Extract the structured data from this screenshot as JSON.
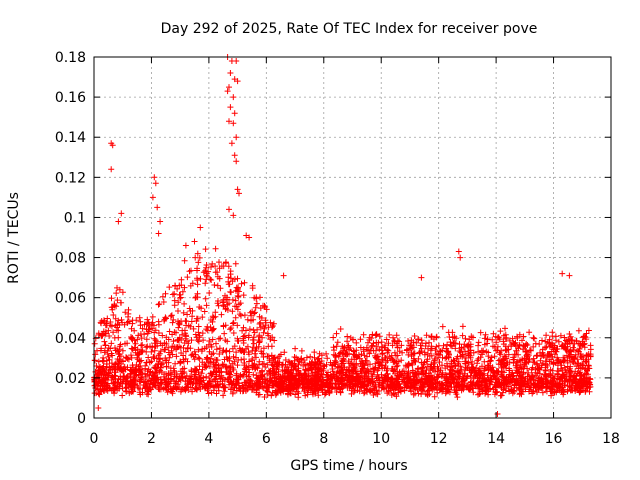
{
  "chart_data": {
    "type": "scatter",
    "title": "Day 292 of 2025, Rate Of TEC Index for receiver pove",
    "xlabel": "GPS time / hours",
    "ylabel": "ROTI / TECUs",
    "xlim": [
      0,
      18
    ],
    "ylim": [
      0,
      0.18
    ],
    "grid": true,
    "xticks": [
      0,
      2,
      4,
      6,
      8,
      10,
      12,
      14,
      16,
      18
    ],
    "xtick_labels": [
      "0",
      "2",
      "4",
      "6",
      "8",
      "10",
      "12",
      "14",
      "16",
      "18"
    ],
    "yticks": [
      0,
      0.02,
      0.04,
      0.06,
      0.08,
      0.1,
      0.12,
      0.14,
      0.16,
      0.18
    ],
    "ytick_labels": [
      "0",
      "0.02",
      "0.04",
      "0.06",
      "0.08",
      "0.1",
      "0.12",
      "0.14",
      "0.16",
      "0.18"
    ],
    "marker": "+",
    "color": "#ff0000",
    "x_range_of_data": [
      0,
      17.3
    ],
    "outliers": [
      {
        "x": 0.6,
        "y": 0.137
      },
      {
        "x": 0.65,
        "y": 0.136
      },
      {
        "x": 0.6,
        "y": 0.124
      },
      {
        "x": 0.95,
        "y": 0.102
      },
      {
        "x": 0.85,
        "y": 0.098
      },
      {
        "x": 2.1,
        "y": 0.12
      },
      {
        "x": 2.15,
        "y": 0.117
      },
      {
        "x": 2.05,
        "y": 0.11
      },
      {
        "x": 2.2,
        "y": 0.105
      },
      {
        "x": 2.3,
        "y": 0.098
      },
      {
        "x": 2.25,
        "y": 0.092
      },
      {
        "x": 4.65,
        "y": 0.18
      },
      {
        "x": 4.8,
        "y": 0.178
      },
      {
        "x": 4.95,
        "y": 0.178
      },
      {
        "x": 4.75,
        "y": 0.172
      },
      {
        "x": 4.9,
        "y": 0.169
      },
      {
        "x": 5.0,
        "y": 0.168
      },
      {
        "x": 4.7,
        "y": 0.165
      },
      {
        "x": 4.65,
        "y": 0.163
      },
      {
        "x": 4.85,
        "y": 0.16
      },
      {
        "x": 4.75,
        "y": 0.155
      },
      {
        "x": 4.9,
        "y": 0.152
      },
      {
        "x": 4.7,
        "y": 0.148
      },
      {
        "x": 4.85,
        "y": 0.147
      },
      {
        "x": 4.95,
        "y": 0.14
      },
      {
        "x": 4.8,
        "y": 0.137
      },
      {
        "x": 4.9,
        "y": 0.131
      },
      {
        "x": 4.95,
        "y": 0.128
      },
      {
        "x": 5.0,
        "y": 0.114
      },
      {
        "x": 5.05,
        "y": 0.112
      },
      {
        "x": 4.7,
        "y": 0.104
      },
      {
        "x": 4.85,
        "y": 0.101
      },
      {
        "x": 5.3,
        "y": 0.091
      },
      {
        "x": 5.4,
        "y": 0.09
      },
      {
        "x": 3.7,
        "y": 0.095
      },
      {
        "x": 3.5,
        "y": 0.088
      },
      {
        "x": 3.2,
        "y": 0.086
      },
      {
        "x": 6.6,
        "y": 0.071
      },
      {
        "x": 12.7,
        "y": 0.083
      },
      {
        "x": 12.75,
        "y": 0.08
      },
      {
        "x": 16.3,
        "y": 0.072
      },
      {
        "x": 16.55,
        "y": 0.071
      },
      {
        "x": 11.4,
        "y": 0.07
      },
      {
        "x": 14.05,
        "y": 0.002
      },
      {
        "x": 0.15,
        "y": 0.005
      }
    ]
  }
}
